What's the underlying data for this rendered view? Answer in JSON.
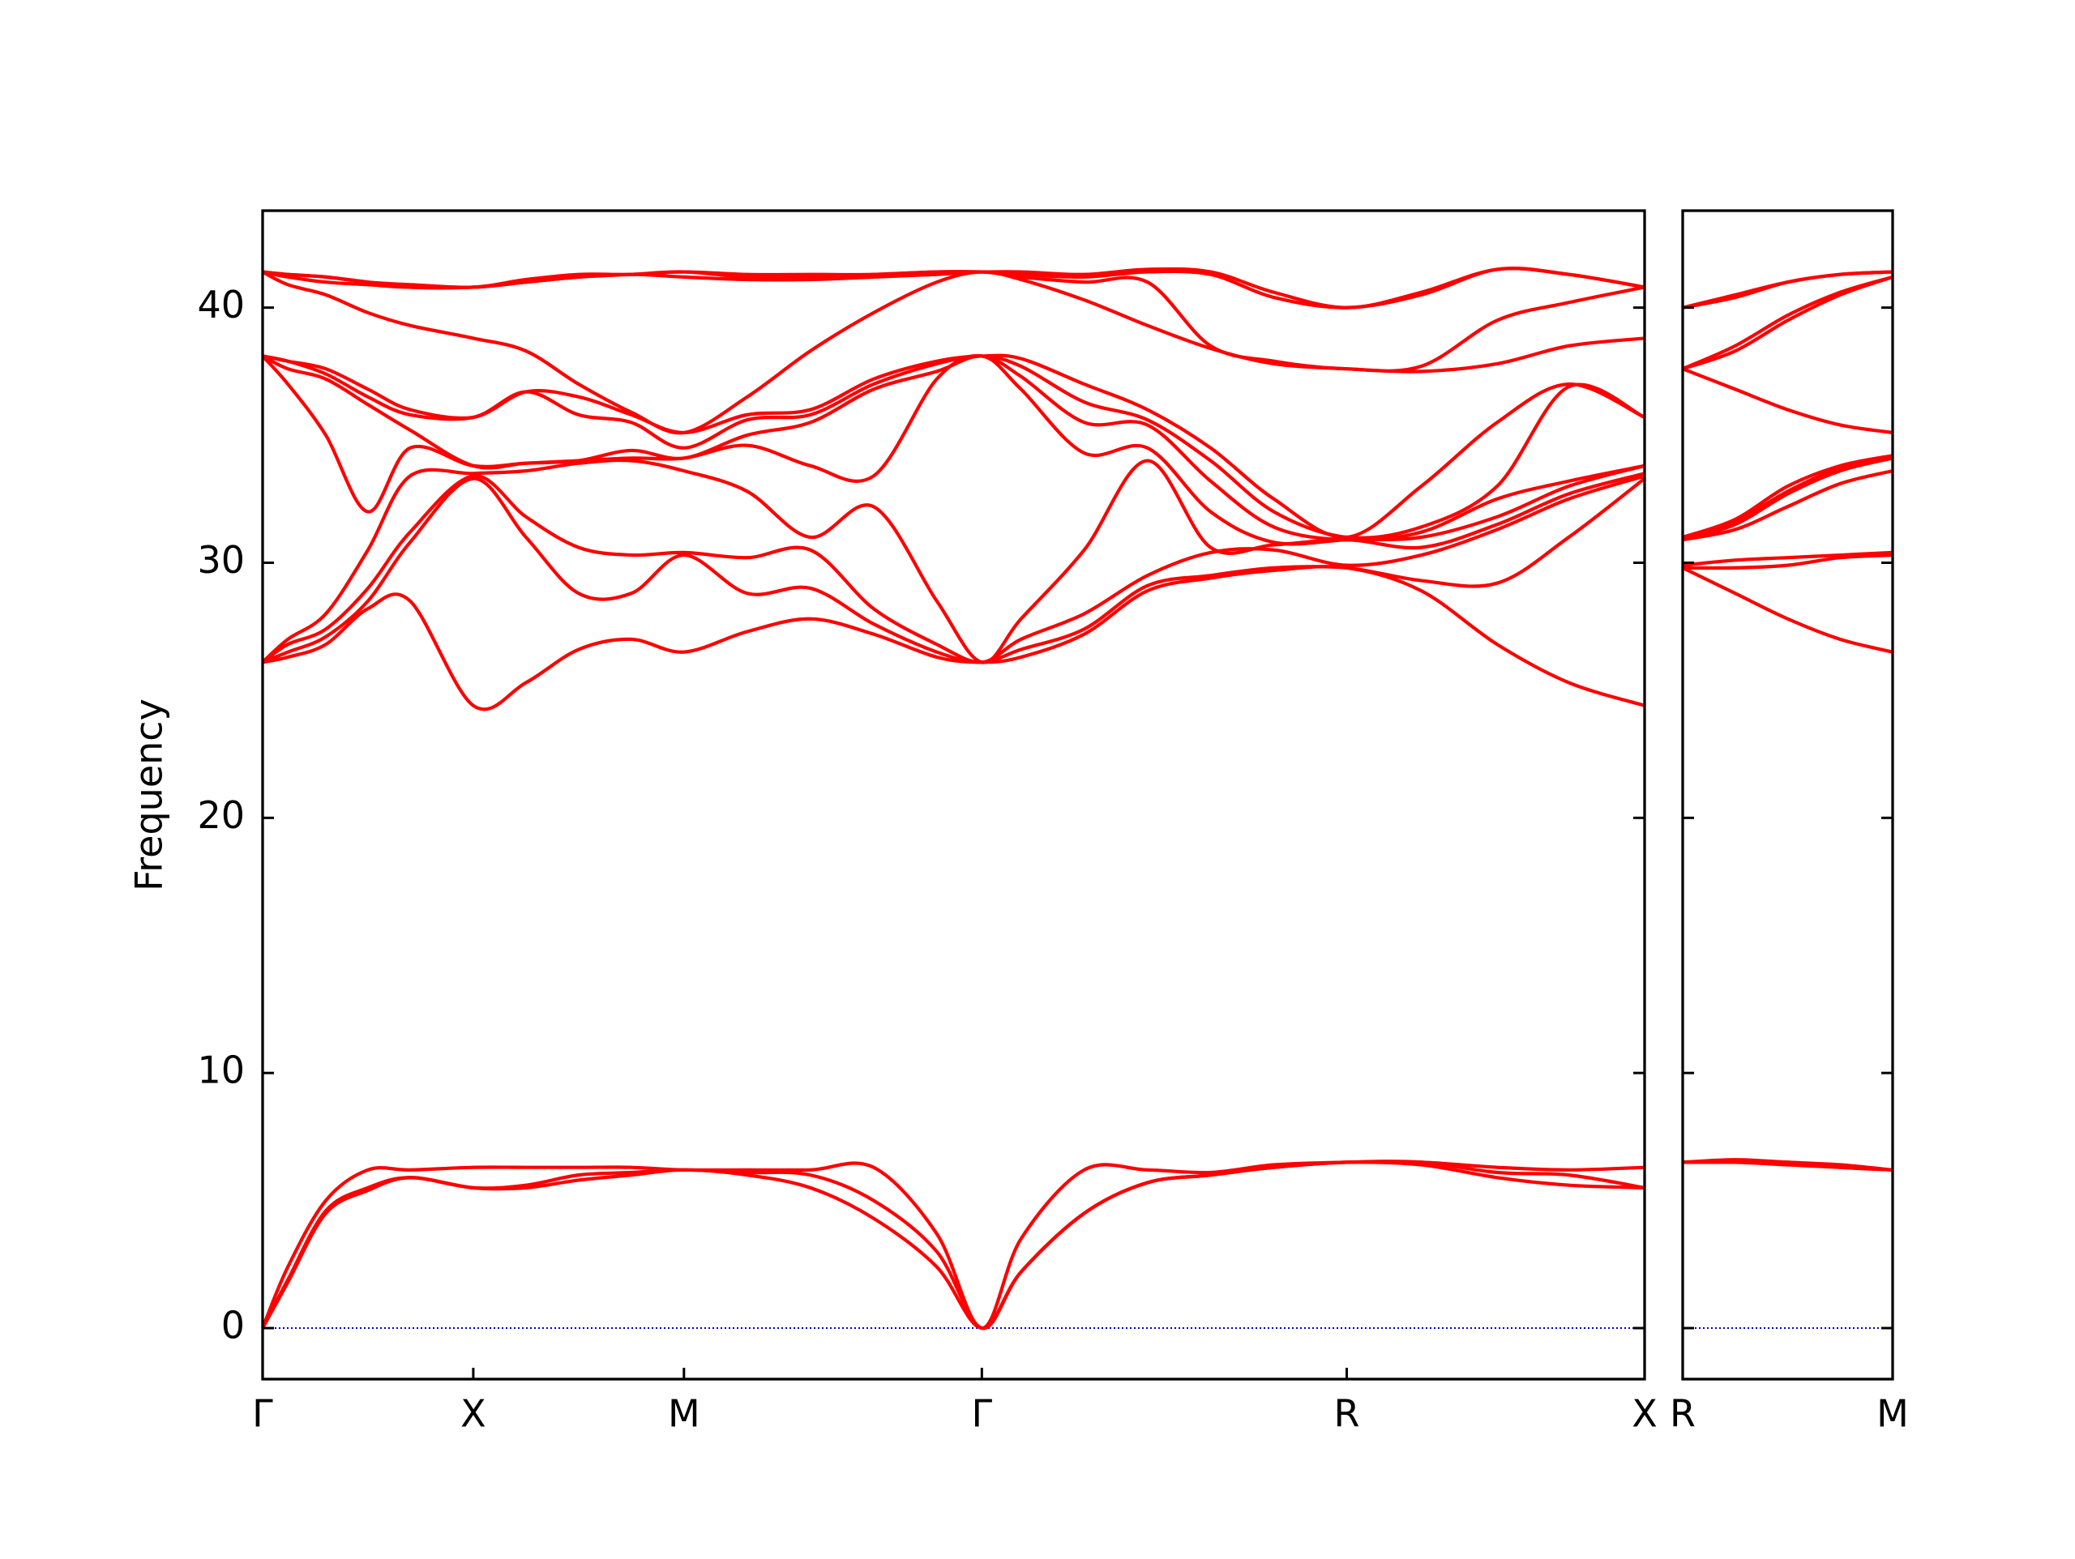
{
  "chart_data": [
    {
      "type": "line",
      "ylabel": "Frequency",
      "color": "#ff0000",
      "zero_line_color": "#0000cc",
      "xlim": [
        0,
        3.28
      ],
      "ylim": [
        -2,
        43.8
      ],
      "xticks": [
        {
          "value": 0,
          "label": "Γ"
        },
        {
          "value": 0.5,
          "label": "X"
        },
        {
          "value": 1.0,
          "label": "M"
        },
        {
          "value": 1.707,
          "label": "Γ"
        },
        {
          "value": 2.573,
          "label": "R"
        },
        {
          "value": 3.28,
          "label": "X"
        }
      ],
      "yticks": [
        0,
        10,
        20,
        30,
        40
      ],
      "x": [
        0,
        0.06,
        0.15,
        0.25,
        0.35,
        0.5,
        0.625,
        0.75,
        0.875,
        1.0,
        1.15,
        1.3,
        1.45,
        1.6,
        1.707,
        1.8,
        1.95,
        2.1,
        2.25,
        2.4,
        2.573,
        2.75,
        2.93,
        3.1,
        3.28
      ],
      "series": [
        {
          "values": [
            0,
            1.8,
            4.5,
            5.4,
            5.9,
            5.5,
            5.5,
            5.8,
            6.0,
            6.2,
            6.0,
            5.5,
            4.3,
            2.4,
            0,
            2.2,
            4.5,
            5.7,
            6.0,
            6.3,
            6.5,
            6.4,
            5.9,
            5.6,
            5.5
          ]
        },
        {
          "values": [
            0,
            1.9,
            4.6,
            5.5,
            5.9,
            5.5,
            5.6,
            6.0,
            6.1,
            6.2,
            6.1,
            6.0,
            5.0,
            3.0,
            0,
            2.2,
            4.5,
            5.7,
            6.0,
            6.3,
            6.5,
            6.5,
            6.1,
            6.0,
            5.5
          ]
        },
        {
          "values": [
            0,
            2.4,
            5.0,
            6.2,
            6.2,
            6.3,
            6.3,
            6.3,
            6.3,
            6.2,
            6.2,
            6.2,
            6.3,
            3.7,
            0,
            3.5,
            6.2,
            6.2,
            6.1,
            6.4,
            6.5,
            6.5,
            6.3,
            6.2,
            6.3
          ]
        },
        {
          "values": [
            26.1,
            26.3,
            26.8,
            28.2,
            28.5,
            24.4,
            25.3,
            26.6,
            27.0,
            26.5,
            27.3,
            27.8,
            27.2,
            26.3,
            26.1,
            26.3,
            27.2,
            28.9,
            29.4,
            29.7,
            29.8,
            28.9,
            26.8,
            25.3,
            24.4
          ]
        },
        {
          "values": [
            26.1,
            26.5,
            27.1,
            28.5,
            30.8,
            33.3,
            31.0,
            28.8,
            28.8,
            30.3,
            28.8,
            29.0,
            27.6,
            26.5,
            26.1,
            26.6,
            27.4,
            29.1,
            29.5,
            29.8,
            29.8,
            29.3,
            29.2,
            31.0,
            33.3
          ]
        },
        {
          "values": [
            26.1,
            26.8,
            27.4,
            29.0,
            31.2,
            33.4,
            31.8,
            30.6,
            30.3,
            30.4,
            30.2,
            30.5,
            28.2,
            26.8,
            26.1,
            27.0,
            28.0,
            29.5,
            30.4,
            30.5,
            29.9,
            30.3,
            31.3,
            32.5,
            33.4
          ]
        },
        {
          "values": [
            26.1,
            27.0,
            28.0,
            30.5,
            33.4,
            33.5,
            33.6,
            33.9,
            34.0,
            33.6,
            32.8,
            31.0,
            32.2,
            28.5,
            26.1,
            27.8,
            30.5,
            34.0,
            30.6,
            30.7,
            30.9,
            30.6,
            31.5,
            32.7,
            33.5
          ]
        },
        {
          "values": [
            38.1,
            37.0,
            35.0,
            32.0,
            34.5,
            33.8,
            33.9,
            34.0,
            34.1,
            34.1,
            34.6,
            33.8,
            33.4,
            37.2,
            38.1,
            36.8,
            34.3,
            34.5,
            32.0,
            30.8,
            30.9,
            31.0,
            31.8,
            33.0,
            33.8
          ]
        },
        {
          "values": [
            38.1,
            37.6,
            37.2,
            36.2,
            35.2,
            33.8,
            33.9,
            34.0,
            34.4,
            34.1,
            35.0,
            35.5,
            36.8,
            37.5,
            38.1,
            37.3,
            35.5,
            35.4,
            33.2,
            31.4,
            30.9,
            31.2,
            32.5,
            33.2,
            33.8
          ]
        },
        {
          "values": [
            38.1,
            37.9,
            37.4,
            36.5,
            35.8,
            35.7,
            36.7,
            35.8,
            35.5,
            34.5,
            35.6,
            35.8,
            37.0,
            37.8,
            38.1,
            37.7,
            36.3,
            35.6,
            34.0,
            32.0,
            31.0,
            31.4,
            33.0,
            36.9,
            35.7
          ]
        },
        {
          "values": [
            38.1,
            37.9,
            37.6,
            36.8,
            36.0,
            35.7,
            36.7,
            36.5,
            35.8,
            35.1,
            35.8,
            36.0,
            37.2,
            37.9,
            38.1,
            38.0,
            37.0,
            36.0,
            34.5,
            32.5,
            31.0,
            33.0,
            35.5,
            37.0,
            35.7
          ]
        },
        {
          "values": [
            41.4,
            40.9,
            40.5,
            39.8,
            39.3,
            38.8,
            38.3,
            37.0,
            35.9,
            35.1,
            36.5,
            38.3,
            39.8,
            41.0,
            41.4,
            41.1,
            40.3,
            39.3,
            38.4,
            37.8,
            37.6,
            37.5,
            37.8,
            38.5,
            38.8
          ]
        },
        {
          "values": [
            41.4,
            41.2,
            41.0,
            40.9,
            40.8,
            40.8,
            41.0,
            41.2,
            41.3,
            41.2,
            41.1,
            41.1,
            41.2,
            41.3,
            41.4,
            41.2,
            41.0,
            41.0,
            38.5,
            37.9,
            37.6,
            37.7,
            39.5,
            40.2,
            40.8
          ]
        },
        {
          "values": [
            41.4,
            41.3,
            41.2,
            41.0,
            40.8,
            40.8,
            41.0,
            41.2,
            41.3,
            41.4,
            41.2,
            41.2,
            41.3,
            41.4,
            41.4,
            41.3,
            41.2,
            41.4,
            41.3,
            40.4,
            40.0,
            40.5,
            41.5,
            41.3,
            40.8
          ]
        },
        {
          "values": [
            41.4,
            41.3,
            41.2,
            41.0,
            40.9,
            40.8,
            41.1,
            41.3,
            41.3,
            41.4,
            41.3,
            41.3,
            41.3,
            41.4,
            41.4,
            41.4,
            41.3,
            41.5,
            41.4,
            40.6,
            40.0,
            40.6,
            41.5,
            41.3,
            40.8
          ]
        }
      ]
    },
    {
      "type": "line",
      "color": "#ff0000",
      "zero_line_color": "#0000cc",
      "xlim": [
        0,
        0.5
      ],
      "ylim": [
        -2,
        43.8
      ],
      "xticks": [
        {
          "value": 0,
          "label": "R"
        },
        {
          "value": 0.5,
          "label": "M"
        }
      ],
      "x": [
        0,
        0.125,
        0.25,
        0.375,
        0.5
      ],
      "series": [
        {
          "values": [
            6.5,
            6.5,
            6.4,
            6.3,
            6.2
          ]
        },
        {
          "values": [
            6.5,
            6.5,
            6.5,
            6.3,
            6.2
          ]
        },
        {
          "values": [
            6.5,
            6.6,
            6.5,
            6.4,
            6.2
          ]
        },
        {
          "values": [
            29.8,
            28.8,
            27.8,
            27.0,
            26.5
          ]
        },
        {
          "values": [
            29.8,
            29.8,
            29.9,
            30.2,
            30.3
          ]
        },
        {
          "values": [
            29.9,
            30.1,
            30.2,
            30.3,
            30.4
          ]
        },
        {
          "values": [
            30.9,
            31.3,
            32.2,
            33.1,
            33.6
          ]
        },
        {
          "values": [
            30.9,
            31.5,
            32.7,
            33.6,
            34.1
          ]
        },
        {
          "values": [
            30.9,
            31.6,
            32.8,
            33.7,
            34.1
          ]
        },
        {
          "values": [
            31.0,
            31.7,
            33.0,
            33.8,
            34.2
          ]
        },
        {
          "values": [
            37.6,
            36.8,
            36.0,
            35.4,
            35.1
          ]
        },
        {
          "values": [
            37.6,
            38.3,
            39.5,
            40.5,
            41.2
          ]
        },
        {
          "values": [
            37.6,
            38.5,
            39.7,
            40.6,
            41.2
          ]
        },
        {
          "values": [
            40.0,
            40.4,
            41.0,
            41.3,
            41.4
          ]
        },
        {
          "values": [
            40.0,
            40.5,
            41.0,
            41.3,
            41.4
          ]
        }
      ]
    }
  ]
}
